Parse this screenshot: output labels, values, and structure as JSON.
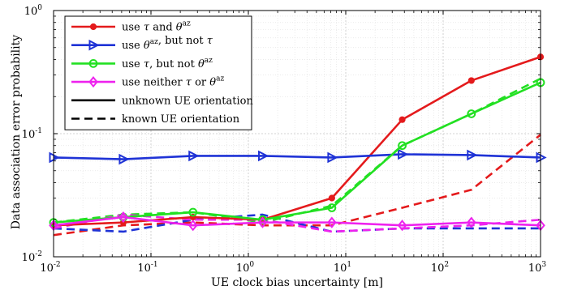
{
  "chart_data": {
    "type": "line",
    "xlabel": "UE clock bias uncertainty [m]",
    "ylabel": "Data association error probability",
    "xscale": "log",
    "yscale": "log",
    "xlim": [
      0.01,
      1000
    ],
    "ylim": [
      0.01,
      1
    ],
    "grid": true,
    "legend_placement": "top-left",
    "x": [
      0.01,
      0.052,
      0.27,
      1.4,
      7.2,
      38,
      195,
      1000
    ],
    "x_ticks": [
      {
        "value": 0.01,
        "base": "10",
        "exp": "-2"
      },
      {
        "value": 0.1,
        "base": "10",
        "exp": "-1"
      },
      {
        "value": 1,
        "base": "10",
        "exp": "0"
      },
      {
        "value": 10,
        "base": "10",
        "exp": "1"
      },
      {
        "value": 100,
        "base": "10",
        "exp": "2"
      },
      {
        "value": 1000,
        "base": "10",
        "exp": "3"
      }
    ],
    "y_ticks": [
      {
        "value": 0.01,
        "base": "10",
        "exp": "-2"
      },
      {
        "value": 0.1,
        "base": "10",
        "exp": "-1"
      },
      {
        "value": 1,
        "base": "10",
        "exp": "0"
      }
    ],
    "series": [
      {
        "id": "tau-az-unknown",
        "color": "#e41a1c",
        "marker": "dot",
        "dash": "solid",
        "values": [
          0.018,
          0.019,
          0.021,
          0.02,
          0.03,
          0.13,
          0.27,
          0.42
        ]
      },
      {
        "id": "az-only-unknown",
        "color": "#1f33d6",
        "marker": "triangle-right",
        "dash": "solid",
        "values": [
          0.064,
          0.062,
          0.066,
          0.066,
          0.064,
          0.068,
          0.067,
          0.064
        ]
      },
      {
        "id": "tau-only-unknown",
        "color": "#22e022",
        "marker": "circle",
        "dash": "solid",
        "values": [
          0.019,
          0.021,
          0.023,
          0.02,
          0.025,
          0.08,
          0.145,
          0.26
        ]
      },
      {
        "id": "neither-unknown",
        "color": "#ee22ee",
        "marker": "diamond",
        "dash": "solid",
        "values": [
          0.018,
          0.021,
          0.018,
          0.019,
          0.019,
          0.018,
          0.019,
          0.018
        ]
      },
      {
        "id": "tau-az-known",
        "color": "#e41a1c",
        "marker": "none",
        "dash": "dashed",
        "values": [
          0.015,
          0.018,
          0.019,
          0.018,
          0.018,
          0.025,
          0.035,
          0.098
        ]
      },
      {
        "id": "az-only-known",
        "color": "#1f33d6",
        "marker": "none",
        "dash": "dashed",
        "values": [
          0.017,
          0.016,
          0.02,
          0.022,
          0.016,
          0.017,
          0.017,
          0.017
        ]
      },
      {
        "id": "tau-only-known",
        "color": "#22e022",
        "marker": "none",
        "dash": "dashed",
        "values": [
          0.019,
          0.022,
          0.023,
          0.019,
          0.026,
          0.08,
          0.145,
          0.28
        ]
      },
      {
        "id": "neither-known",
        "color": "#ee22ee",
        "marker": "none",
        "dash": "dashed",
        "values": [
          0.017,
          0.022,
          0.02,
          0.02,
          0.016,
          0.017,
          0.018,
          0.02
        ]
      }
    ],
    "legend": [
      {
        "color": "#e41a1c",
        "marker": "dot",
        "dash": "solid",
        "parts": [
          {
            "t": "use "
          },
          {
            "t": "τ",
            "i": true
          },
          {
            "t": " and "
          },
          {
            "t": "θ",
            "i": true
          },
          {
            "t": "az",
            "sup": true
          }
        ]
      },
      {
        "color": "#1f33d6",
        "marker": "triangle-right",
        "dash": "solid",
        "parts": [
          {
            "t": "use "
          },
          {
            "t": "θ",
            "i": true
          },
          {
            "t": "az",
            "sup": true
          },
          {
            "t": ", but not "
          },
          {
            "t": "τ",
            "i": true
          }
        ]
      },
      {
        "color": "#22e022",
        "marker": "circle",
        "dash": "solid",
        "parts": [
          {
            "t": "use "
          },
          {
            "t": "τ",
            "i": true
          },
          {
            "t": ", but not "
          },
          {
            "t": "θ",
            "i": true
          },
          {
            "t": "az",
            "sup": true
          }
        ]
      },
      {
        "color": "#ee22ee",
        "marker": "diamond",
        "dash": "solid",
        "parts": [
          {
            "t": "use neither "
          },
          {
            "t": "τ",
            "i": true
          },
          {
            "t": " or "
          },
          {
            "t": "θ",
            "i": true
          },
          {
            "t": "az",
            "sup": true
          }
        ]
      },
      {
        "color": "#000000",
        "marker": "none",
        "dash": "solid",
        "parts": [
          {
            "t": "unknown UE orientation"
          }
        ]
      },
      {
        "color": "#000000",
        "marker": "none",
        "dash": "dashed",
        "parts": [
          {
            "t": "known UE orientation"
          }
        ]
      }
    ]
  }
}
